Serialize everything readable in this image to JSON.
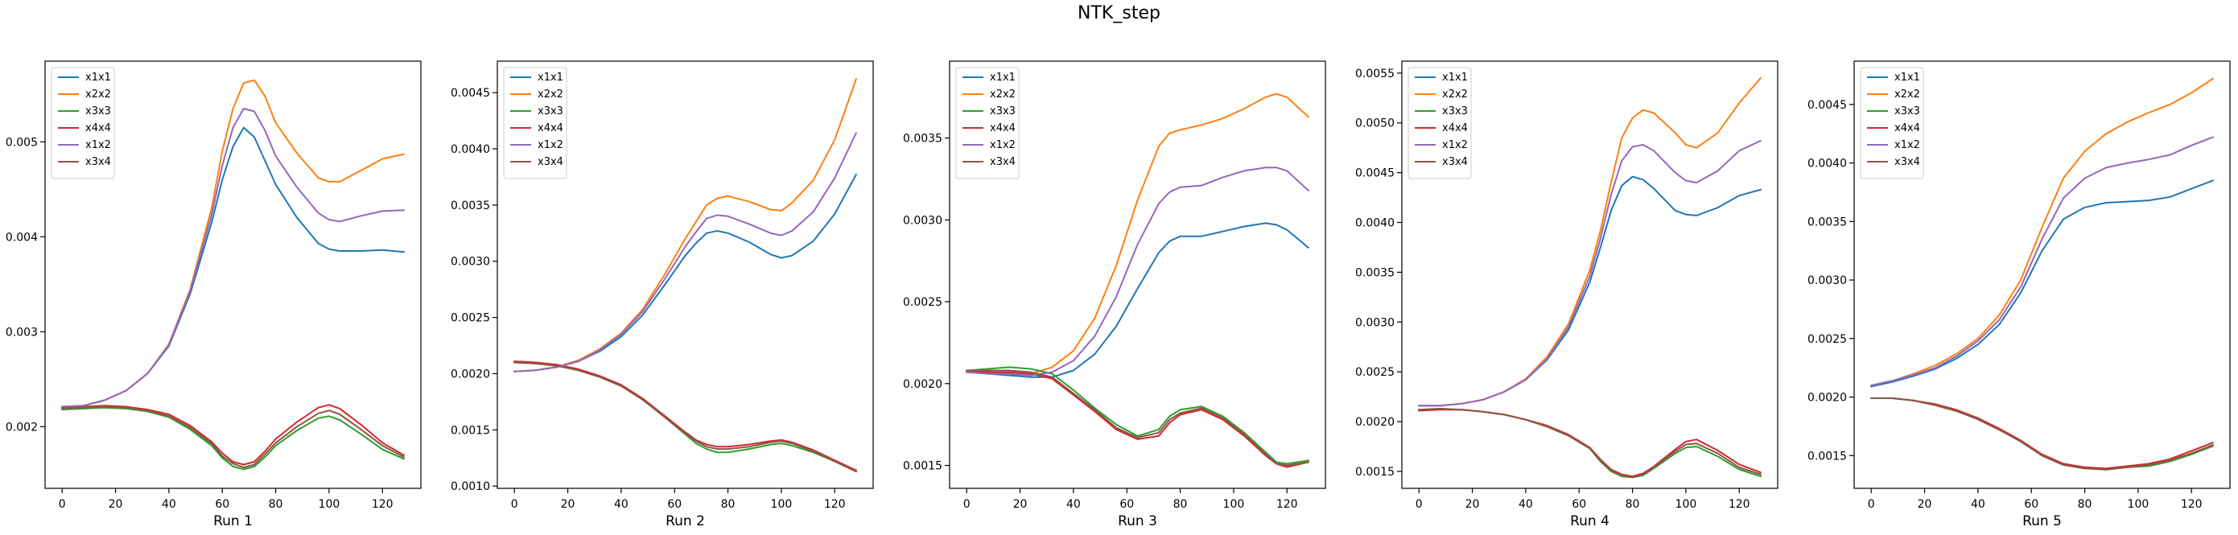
{
  "figure": {
    "title": "NTK_step"
  },
  "legend_labels": [
    "x1x1",
    "x2x2",
    "x3x3",
    "x4x4",
    "x1x2",
    "x3x4"
  ],
  "series_colors": [
    "#1f77b4",
    "#ff7f0e",
    "#2ca02c",
    "#d62728",
    "#9467bd",
    "#8c564b"
  ],
  "chart_data": [
    {
      "type": "line",
      "xlabel": "Run 1",
      "ylabel": "",
      "xlim": [
        -6.4,
        134.4
      ],
      "ylim": [
        0.00135,
        0.00585
      ],
      "xticks": [
        0,
        20,
        40,
        60,
        80,
        100,
        120
      ],
      "yticks": [
        0.002,
        0.003,
        0.004,
        0.005
      ],
      "ytick_labels": [
        "0.002",
        "0.003",
        "0.004",
        "0.005"
      ],
      "grid": false,
      "legend": "upper-left",
      "x": [
        0,
        8,
        16,
        24,
        32,
        40,
        48,
        56,
        60,
        64,
        68,
        72,
        76,
        80,
        88,
        96,
        100,
        104,
        112,
        120,
        128
      ],
      "series": [
        {
          "name": "x1x1",
          "values": [
            0.00221,
            0.00222,
            0.00228,
            0.00238,
            0.00256,
            0.00285,
            0.0034,
            0.00415,
            0.0046,
            0.00495,
            0.00515,
            0.00505,
            0.0048,
            0.00455,
            0.0042,
            0.00393,
            0.00387,
            0.00385,
            0.00385,
            0.00386,
            0.00384
          ]
        },
        {
          "name": "x2x2",
          "values": [
            0.00221,
            0.00222,
            0.00228,
            0.00238,
            0.00256,
            0.00287,
            0.00345,
            0.0043,
            0.0049,
            0.00535,
            0.00562,
            0.00565,
            0.00548,
            0.0052,
            0.00488,
            0.00462,
            0.00458,
            0.00458,
            0.0047,
            0.00482,
            0.00487
          ]
        },
        {
          "name": "x3x3",
          "values": [
            0.00218,
            0.00219,
            0.0022,
            0.00219,
            0.00216,
            0.0021,
            0.00197,
            0.0018,
            0.00167,
            0.00158,
            0.00155,
            0.00158,
            0.00168,
            0.0018,
            0.00196,
            0.00209,
            0.00211,
            0.00207,
            0.00192,
            0.00176,
            0.00166
          ]
        },
        {
          "name": "x4x4",
          "values": [
            0.0022,
            0.00221,
            0.00222,
            0.00221,
            0.00218,
            0.00213,
            0.00201,
            0.00184,
            0.00172,
            0.00163,
            0.0016,
            0.00163,
            0.00174,
            0.00187,
            0.00205,
            0.0022,
            0.00223,
            0.00219,
            0.00202,
            0.00183,
            0.0017
          ]
        },
        {
          "name": "x1x2",
          "values": [
            0.00221,
            0.00222,
            0.00228,
            0.00238,
            0.00256,
            0.00286,
            0.00343,
            0.00423,
            0.00475,
            0.00515,
            0.00535,
            0.00532,
            0.00512,
            0.00485,
            0.00452,
            0.00425,
            0.00418,
            0.00416,
            0.00422,
            0.00427,
            0.00428
          ]
        },
        {
          "name": "x3x4",
          "values": [
            0.00219,
            0.0022,
            0.00221,
            0.0022,
            0.00217,
            0.00211,
            0.00199,
            0.00182,
            0.00169,
            0.00161,
            0.00157,
            0.0016,
            0.00171,
            0.00183,
            0.002,
            0.00214,
            0.00217,
            0.00213,
            0.00197,
            0.0018,
            0.00168
          ]
        }
      ]
    },
    {
      "type": "line",
      "xlabel": "Run 2",
      "ylabel": "",
      "xlim": [
        -6.4,
        134.4
      ],
      "ylim": [
        0.00098,
        0.00478
      ],
      "xticks": [
        0,
        20,
        40,
        60,
        80,
        100,
        120
      ],
      "yticks": [
        0.001,
        0.0015,
        0.002,
        0.0025,
        0.003,
        0.0035,
        0.004,
        0.0045
      ],
      "ytick_labels": [
        "0.0010",
        "0.0015",
        "0.0020",
        "0.0025",
        "0.0030",
        "0.0035",
        "0.0040",
        "0.0045"
      ],
      "grid": false,
      "legend": "upper-left",
      "x": [
        0,
        8,
        16,
        24,
        32,
        40,
        48,
        56,
        64,
        68,
        72,
        76,
        80,
        88,
        96,
        100,
        104,
        112,
        120,
        128
      ],
      "series": [
        {
          "name": "x1x1",
          "values": [
            0.00202,
            0.00203,
            0.00206,
            0.00211,
            0.0022,
            0.00233,
            0.00252,
            0.00278,
            0.00305,
            0.00316,
            0.00325,
            0.00327,
            0.00325,
            0.00317,
            0.00306,
            0.00303,
            0.00305,
            0.00318,
            0.00342,
            0.00377
          ]
        },
        {
          "name": "x2x2",
          "values": [
            0.00202,
            0.00203,
            0.00206,
            0.00212,
            0.00222,
            0.00236,
            0.00257,
            0.00287,
            0.0032,
            0.00335,
            0.0035,
            0.00356,
            0.00358,
            0.00353,
            0.00346,
            0.00345,
            0.00352,
            0.00372,
            0.00408,
            0.00462
          ]
        },
        {
          "name": "x3x3",
          "values": [
            0.0021,
            0.00209,
            0.00207,
            0.00203,
            0.00197,
            0.00189,
            0.00177,
            0.00162,
            0.00146,
            0.00138,
            0.00133,
            0.0013,
            0.0013,
            0.00133,
            0.00137,
            0.00138,
            0.00136,
            0.0013,
            0.00122,
            0.00113
          ]
        },
        {
          "name": "x4x4",
          "values": [
            0.00211,
            0.0021,
            0.00208,
            0.00204,
            0.00198,
            0.0019,
            0.00178,
            0.00163,
            0.00148,
            0.00141,
            0.00137,
            0.00135,
            0.00135,
            0.00137,
            0.0014,
            0.00141,
            0.00139,
            0.00132,
            0.00123,
            0.00114
          ]
        },
        {
          "name": "x1x2",
          "values": [
            0.00202,
            0.00203,
            0.00206,
            0.00211,
            0.00221,
            0.00235,
            0.00255,
            0.00283,
            0.00313,
            0.00326,
            0.00338,
            0.00341,
            0.0034,
            0.00333,
            0.00325,
            0.00323,
            0.00327,
            0.00344,
            0.00374,
            0.00414
          ]
        },
        {
          "name": "x3x4",
          "values": [
            0.0021,
            0.00209,
            0.00207,
            0.00203,
            0.00197,
            0.00189,
            0.00177,
            0.00162,
            0.00147,
            0.0014,
            0.00135,
            0.00133,
            0.00133,
            0.00135,
            0.00139,
            0.0014,
            0.00138,
            0.00131,
            0.00122,
            0.00113
          ]
        }
      ]
    },
    {
      "type": "line",
      "xlabel": "Run 3",
      "ylabel": "",
      "xlim": [
        -6.4,
        134.4
      ],
      "ylim": [
        0.00136,
        0.00397
      ],
      "xticks": [
        0,
        20,
        40,
        60,
        80,
        100,
        120
      ],
      "yticks": [
        0.0015,
        0.002,
        0.0025,
        0.003,
        0.0035
      ],
      "ytick_labels": [
        "0.0015",
        "0.0020",
        "0.0025",
        "0.0030",
        "0.0035"
      ],
      "grid": false,
      "legend": "upper-left",
      "x": [
        0,
        8,
        16,
        24,
        32,
        40,
        48,
        56,
        64,
        72,
        76,
        80,
        88,
        96,
        104,
        112,
        116,
        120,
        128
      ],
      "series": [
        {
          "name": "x1x1",
          "values": [
            0.00207,
            0.00206,
            0.00205,
            0.00204,
            0.00204,
            0.00208,
            0.00218,
            0.00235,
            0.00258,
            0.0028,
            0.00287,
            0.0029,
            0.0029,
            0.00293,
            0.00296,
            0.00298,
            0.00297,
            0.00294,
            0.00283
          ]
        },
        {
          "name": "x2x2",
          "values": [
            0.00207,
            0.00207,
            0.00206,
            0.00206,
            0.0021,
            0.0022,
            0.0024,
            0.00272,
            0.00312,
            0.00345,
            0.00353,
            0.00355,
            0.00358,
            0.00362,
            0.00368,
            0.00375,
            0.00377,
            0.00375,
            0.00363
          ]
        },
        {
          "name": "x3x3",
          "values": [
            0.00208,
            0.00209,
            0.0021,
            0.00209,
            0.00206,
            0.00196,
            0.00185,
            0.00175,
            0.00168,
            0.00172,
            0.0018,
            0.00184,
            0.00186,
            0.0018,
            0.0017,
            0.00158,
            0.00152,
            0.00151,
            0.00153
          ]
        },
        {
          "name": "x4x4",
          "values": [
            0.00207,
            0.00207,
            0.00207,
            0.00206,
            0.00203,
            0.00193,
            0.00183,
            0.00172,
            0.00166,
            0.00168,
            0.00176,
            0.00181,
            0.00184,
            0.00178,
            0.00168,
            0.00156,
            0.00151,
            0.00149,
            0.00152
          ]
        },
        {
          "name": "x1x2",
          "values": [
            0.00207,
            0.00206,
            0.00206,
            0.00205,
            0.00207,
            0.00214,
            0.00229,
            0.00253,
            0.00285,
            0.0031,
            0.00317,
            0.0032,
            0.00321,
            0.00326,
            0.0033,
            0.00332,
            0.00332,
            0.0033,
            0.00318
          ]
        },
        {
          "name": "x3x4",
          "values": [
            0.00208,
            0.00208,
            0.00208,
            0.00207,
            0.00204,
            0.00194,
            0.00184,
            0.00173,
            0.00167,
            0.0017,
            0.00178,
            0.00182,
            0.00185,
            0.00179,
            0.00169,
            0.00157,
            0.00151,
            0.0015,
            0.00152
          ]
        }
      ]
    },
    {
      "type": "line",
      "xlabel": "Run 4",
      "ylabel": "",
      "xlim": [
        -6.4,
        134.4
      ],
      "ylim": [
        0.00133,
        0.00562
      ],
      "xticks": [
        0,
        20,
        40,
        60,
        80,
        100,
        120
      ],
      "yticks": [
        0.0015,
        0.002,
        0.0025,
        0.003,
        0.0035,
        0.004,
        0.0045,
        0.005,
        0.0055
      ],
      "ytick_labels": [
        "0.0015",
        "0.0020",
        "0.0025",
        "0.0030",
        "0.0035",
        "0.0040",
        "0.0045",
        "0.0050",
        "0.0055"
      ],
      "grid": false,
      "legend": "upper-left",
      "x": [
        0,
        8,
        16,
        24,
        32,
        40,
        48,
        56,
        64,
        68,
        72,
        76,
        80,
        84,
        88,
        96,
        100,
        104,
        112,
        120,
        128
      ],
      "series": [
        {
          "name": "x1x1",
          "values": [
            0.00216,
            0.00216,
            0.00218,
            0.00222,
            0.0023,
            0.00242,
            0.00262,
            0.00292,
            0.0034,
            0.00375,
            0.00412,
            0.00437,
            0.00446,
            0.00443,
            0.00434,
            0.00412,
            0.00408,
            0.00407,
            0.00415,
            0.00427,
            0.00433
          ]
        },
        {
          "name": "x2x2",
          "values": [
            0.00216,
            0.00216,
            0.00218,
            0.00222,
            0.0023,
            0.00243,
            0.00265,
            0.00298,
            0.00352,
            0.00392,
            0.0044,
            0.00485,
            0.00505,
            0.00513,
            0.0051,
            0.0049,
            0.00478,
            0.00475,
            0.0049,
            0.0052,
            0.00545
          ]
        },
        {
          "name": "x3x3",
          "values": [
            0.00212,
            0.00213,
            0.00212,
            0.0021,
            0.00207,
            0.00202,
            0.00195,
            0.00186,
            0.00173,
            0.0016,
            0.0015,
            0.00145,
            0.00144,
            0.00146,
            0.00153,
            0.00168,
            0.00174,
            0.00175,
            0.00165,
            0.00152,
            0.00145
          ]
        },
        {
          "name": "x4x4",
          "values": [
            0.00211,
            0.00212,
            0.00212,
            0.0021,
            0.00207,
            0.00202,
            0.00196,
            0.00187,
            0.00174,
            0.00162,
            0.00152,
            0.00147,
            0.00145,
            0.00148,
            0.00155,
            0.00172,
            0.0018,
            0.00182,
            0.00171,
            0.00157,
            0.00149
          ]
        },
        {
          "name": "x1x2",
          "values": [
            0.00216,
            0.00216,
            0.00218,
            0.00222,
            0.0023,
            0.00242,
            0.00263,
            0.00295,
            0.00346,
            0.00384,
            0.00428,
            0.00462,
            0.00476,
            0.00478,
            0.00472,
            0.0045,
            0.00442,
            0.0044,
            0.00452,
            0.00472,
            0.00482
          ]
        },
        {
          "name": "x3x4",
          "values": [
            0.00212,
            0.00213,
            0.00212,
            0.0021,
            0.00207,
            0.00202,
            0.00195,
            0.00186,
            0.00173,
            0.00161,
            0.00151,
            0.00146,
            0.00144,
            0.00147,
            0.00154,
            0.0017,
            0.00177,
            0.00178,
            0.00168,
            0.00154,
            0.00147
          ]
        }
      ]
    },
    {
      "type": "line",
      "xlabel": "Run 5",
      "ylabel": "",
      "xlim": [
        -6.4,
        134.4
      ],
      "ylim": [
        0.00122,
        0.00487
      ],
      "xticks": [
        0,
        20,
        40,
        60,
        80,
        100,
        120
      ],
      "yticks": [
        0.0015,
        0.002,
        0.0025,
        0.003,
        0.0035,
        0.004,
        0.0045
      ],
      "ytick_labels": [
        "0.0015",
        "0.0020",
        "0.0025",
        "0.0030",
        "0.0035",
        "0.0040",
        "0.0045"
      ],
      "grid": false,
      "legend": "upper-left",
      "x": [
        0,
        8,
        16,
        24,
        32,
        40,
        48,
        56,
        64,
        72,
        80,
        88,
        96,
        104,
        112,
        120,
        128
      ],
      "series": [
        {
          "name": "x1x1",
          "values": [
            0.00209,
            0.00213,
            0.00218,
            0.00224,
            0.00233,
            0.00245,
            0.00262,
            0.00289,
            0.00325,
            0.00352,
            0.00362,
            0.00366,
            0.00367,
            0.00368,
            0.00371,
            0.00378,
            0.00385
          ]
        },
        {
          "name": "x2x2",
          "values": [
            0.0021,
            0.00214,
            0.0022,
            0.00227,
            0.00237,
            0.0025,
            0.0027,
            0.003,
            0.00345,
            0.00387,
            0.0041,
            0.00425,
            0.00435,
            0.00443,
            0.0045,
            0.0046,
            0.00472
          ]
        },
        {
          "name": "x3x3",
          "values": [
            0.00199,
            0.00199,
            0.00197,
            0.00193,
            0.00188,
            0.00181,
            0.00172,
            0.00162,
            0.0015,
            0.00142,
            0.00139,
            0.00138,
            0.0014,
            0.00141,
            0.00145,
            0.00151,
            0.00158
          ]
        },
        {
          "name": "x4x4",
          "values": [
            0.00199,
            0.00199,
            0.00197,
            0.00194,
            0.00189,
            0.00182,
            0.00173,
            0.00163,
            0.00151,
            0.00143,
            0.0014,
            0.00139,
            0.00141,
            0.00143,
            0.00147,
            0.00154,
            0.00161
          ]
        },
        {
          "name": "x1x2",
          "values": [
            0.0021,
            0.00214,
            0.00219,
            0.00225,
            0.00235,
            0.00248,
            0.00266,
            0.00294,
            0.00335,
            0.0037,
            0.00387,
            0.00396,
            0.004,
            0.00403,
            0.00407,
            0.00415,
            0.00422
          ]
        },
        {
          "name": "x3x4",
          "values": [
            0.00199,
            0.00199,
            0.00197,
            0.00193,
            0.00188,
            0.00181,
            0.00172,
            0.00162,
            0.0015,
            0.00142,
            0.00139,
            0.00138,
            0.0014,
            0.00142,
            0.00146,
            0.00152,
            0.00159
          ]
        }
      ]
    }
  ]
}
